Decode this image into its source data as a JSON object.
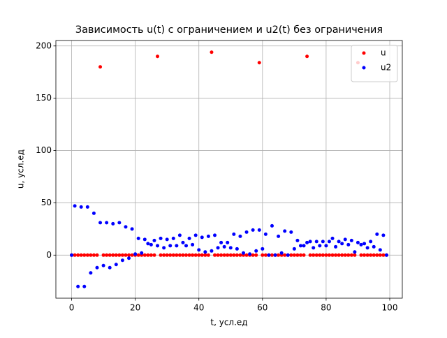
{
  "chart_data": {
    "type": "scatter",
    "title": "Зависимость u(t) с ограничением и u2(t) без ограничения",
    "x_label": "t, усл.ед",
    "y_label": "u, усл.ед",
    "x": [
      0,
      1,
      2,
      3,
      4,
      5,
      6,
      7,
      8,
      9,
      10,
      11,
      12,
      13,
      14,
      15,
      16,
      17,
      18,
      19,
      20,
      21,
      22,
      23,
      24,
      25,
      26,
      27,
      28,
      29,
      30,
      31,
      32,
      33,
      34,
      35,
      36,
      37,
      38,
      39,
      40,
      41,
      42,
      43,
      44,
      45,
      46,
      47,
      48,
      49,
      50,
      51,
      52,
      53,
      54,
      55,
      56,
      57,
      58,
      59,
      60,
      61,
      62,
      63,
      64,
      65,
      66,
      67,
      68,
      69,
      70,
      71,
      72,
      73,
      74,
      75,
      76,
      77,
      78,
      79,
      80,
      81,
      82,
      83,
      84,
      85,
      86,
      87,
      88,
      89,
      90,
      91,
      92,
      93,
      94,
      95,
      96,
      97,
      98,
      99
    ],
    "series": [
      {
        "name": "u",
        "color": "#ff0000",
        "values": [
          0,
          0,
          0,
          0,
          0,
          0,
          0,
          0,
          0,
          180,
          0,
          0,
          0,
          0,
          0,
          0,
          0,
          0,
          0,
          0,
          0,
          0,
          0,
          0,
          0,
          0,
          0,
          190,
          0,
          0,
          0,
          0,
          0,
          0,
          0,
          0,
          0,
          0,
          0,
          0,
          0,
          0,
          0,
          0,
          194,
          0,
          0,
          0,
          0,
          0,
          0,
          0,
          0,
          0,
          0,
          0,
          0,
          0,
          0,
          184,
          0,
          0,
          0,
          0,
          0,
          0,
          0,
          0,
          0,
          0,
          0,
          0,
          0,
          0,
          190,
          0,
          0,
          0,
          0,
          0,
          0,
          0,
          0,
          0,
          0,
          0,
          0,
          0,
          0,
          0,
          184,
          0,
          0,
          0,
          0,
          0,
          0,
          0,
          0,
          0
        ]
      },
      {
        "name": "u2",
        "color": "#0000ff",
        "values": [
          0,
          47,
          -30,
          46,
          -30,
          46,
          -17,
          40,
          -12,
          31,
          -10,
          31,
          -12,
          30,
          -9,
          31,
          -5,
          27,
          -3,
          25,
          1,
          16,
          2,
          15,
          11,
          10,
          14,
          9,
          16,
          7,
          15,
          9,
          16,
          9,
          19,
          12,
          9,
          16,
          10,
          19,
          5,
          17,
          3,
          18,
          4,
          19,
          7,
          12,
          8,
          12,
          7,
          20,
          6,
          18,
          2,
          22,
          1,
          24,
          4,
          24,
          6,
          20,
          0,
          28,
          0,
          18,
          2,
          23,
          0,
          22,
          6,
          14,
          9,
          9,
          12,
          13,
          7,
          13,
          9,
          13,
          9,
          13,
          16,
          8,
          13,
          11,
          15,
          10,
          14,
          3,
          12,
          10,
          11,
          7,
          13,
          8,
          20,
          5,
          19,
          0
        ]
      }
    ],
    "xlim": [
      -4.95,
      103.95
    ],
    "ylim": [
      -41.2,
      205.2
    ],
    "xticks": [
      0,
      20,
      40,
      60,
      80,
      100
    ],
    "yticks": [
      0,
      50,
      100,
      150,
      200
    ],
    "grid": true,
    "legend": "upper right"
  }
}
